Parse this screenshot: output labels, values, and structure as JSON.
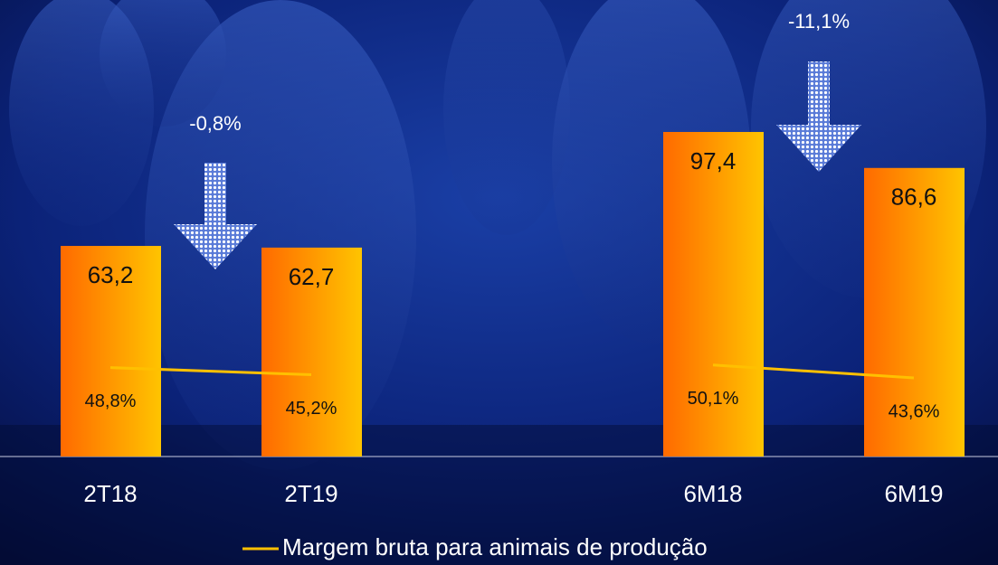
{
  "chart_data": {
    "type": "bar",
    "categories": [
      "2T18",
      "2T19",
      null,
      "6M18",
      "6M19"
    ],
    "values": [
      63.2,
      62.7,
      null,
      97.4,
      86.6
    ],
    "value_labels": [
      "63,2",
      "62,7",
      null,
      "97,4",
      "86,6"
    ],
    "color": "#ff6a00",
    "color_end": "#ffc400",
    "ylim": [
      0,
      137
    ],
    "y2lim": [
      4,
      234
    ],
    "series": [
      {
        "name": "Margem bruta para animais de produção",
        "color": "#ffc000",
        "axis": "y2",
        "values": [
          48.8,
          45.2,
          null,
          50.1,
          43.6
        ],
        "value_labels": [
          "48,8%",
          "45,2%",
          null,
          "50,1%",
          "43,6%"
        ]
      }
    ],
    "annotations": [
      "-0,8%",
      "-11,1%"
    ]
  }
}
